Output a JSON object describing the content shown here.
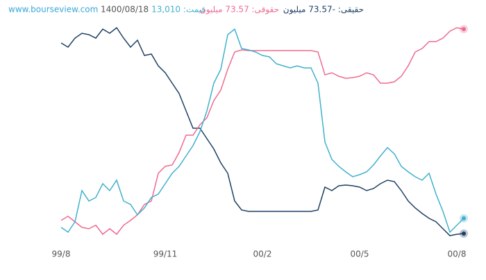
{
  "header": {
    "site": "www.bourseview.com",
    "date": "1400/08/18",
    "price": "قیمت: 13,010",
    "legal": "حقوقی: 73.57 میلیون",
    "individual": "حقیقی: -73.57 میلیون"
  },
  "chart_data": {
    "type": "line",
    "xlim": [
      0,
      58
    ],
    "ylim": [
      0,
      300
    ],
    "xticks": [
      {
        "value": 0,
        "label": "99/8"
      },
      {
        "value": 15,
        "label": "99/11"
      },
      {
        "value": 29,
        "label": "00/2"
      },
      {
        "value": 43,
        "label": "00/5"
      },
      {
        "value": 57,
        "label": "00/8"
      }
    ],
    "series": [
      {
        "name": "حقیقی",
        "color": "#1d3f63",
        "values": [
          278,
          272,
          285,
          292,
          290,
          285,
          298,
          292,
          300,
          285,
          272,
          282,
          260,
          262,
          245,
          235,
          220,
          205,
          180,
          155,
          155,
          140,
          125,
          105,
          90,
          50,
          37,
          35,
          35,
          35,
          35,
          35,
          35,
          35,
          35,
          35,
          35,
          37,
          70,
          65,
          72,
          73,
          72,
          70,
          65,
          68,
          75,
          80,
          78,
          65,
          50,
          40,
          32,
          25,
          20,
          10,
          0,
          2,
          3
        ]
      },
      {
        "name": "حقوقی",
        "color": "#ee6a8f",
        "values": [
          22,
          28,
          20,
          12,
          10,
          15,
          2,
          10,
          2,
          15,
          22,
          30,
          45,
          50,
          90,
          100,
          102,
          120,
          145,
          145,
          160,
          170,
          195,
          210,
          240,
          265,
          268,
          267,
          267,
          267,
          267,
          267,
          267,
          267,
          267,
          267,
          267,
          265,
          232,
          235,
          230,
          227,
          228,
          230,
          235,
          232,
          220,
          220,
          222,
          230,
          245,
          265,
          270,
          280,
          280,
          285,
          295,
          300,
          298
        ]
      },
      {
        "name": "قیمت",
        "color": "#3fb0cc",
        "values": [
          12,
          5,
          20,
          65,
          50,
          55,
          75,
          65,
          80,
          50,
          45,
          30,
          40,
          55,
          60,
          75,
          90,
          100,
          115,
          130,
          150,
          180,
          220,
          240,
          290,
          298,
          270,
          268,
          265,
          260,
          258,
          248,
          245,
          242,
          245,
          242,
          242,
          220,
          135,
          110,
          100,
          92,
          85,
          88,
          92,
          102,
          115,
          127,
          118,
          100,
          92,
          85,
          80,
          90,
          60,
          35,
          5,
          15,
          25
        ]
      }
    ]
  }
}
